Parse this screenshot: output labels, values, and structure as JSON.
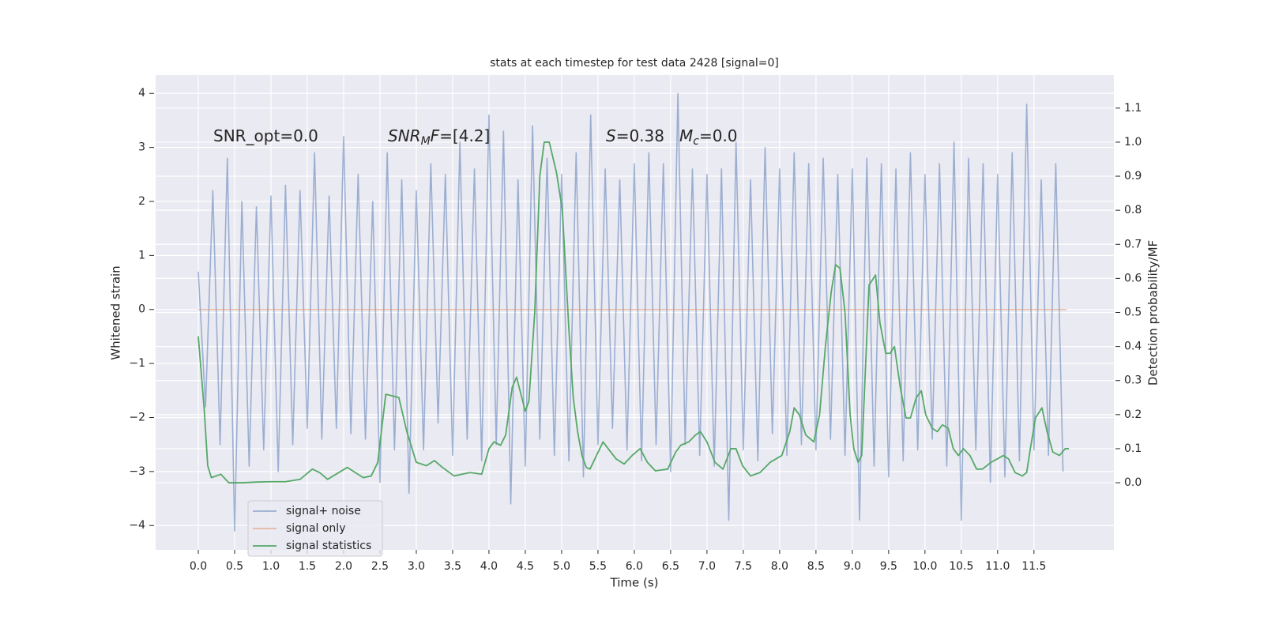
{
  "chart_data": {
    "type": "line",
    "title": "stats at each timestep for test data 2428 [signal=0]",
    "xlabel": "Time (s)",
    "ylabel": "Whitened strain",
    "y2label": "Detection probability/MF",
    "xlim": [
      -0.587,
      12.6
    ],
    "ylim": [
      -4.45,
      4.34
    ],
    "y2lim": [
      -0.197,
      1.197
    ],
    "xticks": [
      {
        "value": 0,
        "label": "0.0"
      },
      0.5,
      {
        "value": 1,
        "label": "1.0"
      },
      1.5,
      {
        "value": 2,
        "label": "2.0"
      },
      2.5,
      {
        "value": 3,
        "label": "3.0"
      },
      3.5,
      {
        "value": 4,
        "label": "4.0"
      },
      4.5,
      {
        "value": 5,
        "label": "5.0"
      },
      5.5,
      {
        "value": 6,
        "label": "6.0"
      },
      6.5,
      {
        "value": 7,
        "label": "7.0"
      },
      7.5,
      {
        "value": 8,
        "label": "8.0"
      },
      8.5,
      {
        "value": 9,
        "label": "9.0"
      },
      9.5,
      {
        "value": 10,
        "label": "10.0"
      },
      10.5,
      {
        "value": 11,
        "label": "11.0"
      },
      11.5
    ],
    "yticks": [
      {
        "value": -4,
        "label": "−4"
      },
      {
        "value": -3,
        "label": "−3"
      },
      {
        "value": -2,
        "label": "−2"
      },
      {
        "value": -1,
        "label": "−1"
      },
      0,
      1,
      2,
      3,
      4
    ],
    "y2ticks": [
      {
        "value": 0,
        "label": "0.0"
      },
      0.1,
      0.2,
      0.3,
      0.4,
      0.5,
      0.6,
      0.7,
      0.8,
      0.9,
      {
        "value": 1,
        "label": "1.0"
      },
      1.1
    ],
    "grid": true,
    "legend": "lower left",
    "annotations": [
      {
        "segments": [
          {
            "text": "SNR_opt=0.0"
          }
        ]
      },
      {
        "segments": [
          {
            "text": "SNR",
            "italic": true
          },
          {
            "text": "M",
            "italic": true,
            "sub": true
          },
          {
            "text": "F",
            "italic": true
          },
          {
            "text": "=[4.2]"
          }
        ]
      },
      {
        "segments": [
          {
            "text": "S",
            "italic": true
          },
          {
            "text": "=0.38"
          }
        ]
      },
      {
        "segments": [
          {
            "text": "M",
            "italic": true
          },
          {
            "text": "c",
            "italic": true,
            "sub": true
          },
          {
            "text": "=0.0"
          }
        ]
      }
    ],
    "series": [
      {
        "name": "signal+ noise",
        "color": "#4c72b0",
        "opacity": 0.5,
        "axis": "y",
        "x": [
          0.0,
          0.1,
          0.2,
          0.3,
          0.4,
          0.5,
          0.6,
          0.7,
          0.8,
          0.9,
          1.0,
          1.1,
          1.2,
          1.3,
          1.4,
          1.5,
          1.6,
          1.7,
          1.8,
          1.9,
          2.0,
          2.1,
          2.2,
          2.3,
          2.4,
          2.5,
          2.6,
          2.7,
          2.8,
          2.9,
          3.0,
          3.1,
          3.2,
          3.3,
          3.4,
          3.5,
          3.6,
          3.7,
          3.8,
          3.9,
          4.0,
          4.1,
          4.2,
          4.3,
          4.4,
          4.5,
          4.6,
          4.7,
          4.8,
          4.9,
          5.0,
          5.1,
          5.2,
          5.3,
          5.4,
          5.5,
          5.6,
          5.7,
          5.8,
          5.9,
          6.0,
          6.1,
          6.2,
          6.3,
          6.4,
          6.5,
          6.6,
          6.7,
          6.8,
          6.9,
          7.0,
          7.1,
          7.2,
          7.3,
          7.4,
          7.5,
          7.6,
          7.7,
          7.8,
          7.9,
          8.0,
          8.1,
          8.2,
          8.3,
          8.4,
          8.5,
          8.6,
          8.7,
          8.8,
          8.9,
          9.0,
          9.1,
          9.2,
          9.3,
          9.4,
          9.5,
          9.6,
          9.7,
          9.8,
          9.9,
          10.0,
          10.1,
          10.2,
          10.3,
          10.4,
          10.5,
          10.6,
          10.7,
          10.8,
          10.9,
          11.0,
          11.1,
          11.2,
          11.3,
          11.4,
          11.5,
          11.6,
          11.7,
          11.8,
          11.9
        ],
        "values": [
          0.7,
          -1.8,
          2.2,
          -2.5,
          2.8,
          -4.1,
          2.0,
          -2.9,
          1.9,
          -2.6,
          2.1,
          -3.0,
          2.3,
          -2.5,
          2.2,
          -2.2,
          2.9,
          -2.4,
          2.1,
          -2.2,
          3.2,
          -2.3,
          2.5,
          -2.4,
          2.0,
          -3.2,
          2.9,
          -2.6,
          2.4,
          -3.4,
          2.2,
          -2.6,
          2.7,
          -2.1,
          2.5,
          -2.7,
          3.1,
          -2.4,
          2.6,
          -2.8,
          3.6,
          -2.5,
          3.3,
          -3.6,
          2.4,
          -2.9,
          3.4,
          -2.4,
          2.8,
          -2.7,
          2.5,
          -2.8,
          2.9,
          -3.1,
          3.6,
          -2.5,
          2.6,
          -2.2,
          2.4,
          -2.6,
          2.7,
          -2.8,
          2.9,
          -2.5,
          2.7,
          -3.0,
          4.0,
          -2.5,
          2.6,
          -2.7,
          2.5,
          -2.9,
          2.6,
          -3.9,
          3.1,
          -2.6,
          2.4,
          -2.8,
          3.0,
          -2.3,
          2.6,
          -2.7,
          2.9,
          -2.5,
          2.7,
          -2.6,
          2.8,
          -2.4,
          2.5,
          -2.7,
          2.6,
          -3.9,
          2.8,
          -2.9,
          2.7,
          -3.1,
          2.6,
          -2.8,
          2.9,
          -2.6,
          2.5,
          -2.4,
          2.7,
          -2.9,
          3.1,
          -3.9,
          2.8,
          -2.6,
          2.7,
          -3.2,
          2.5,
          -3.1,
          2.9,
          -2.8,
          3.8,
          -2.6,
          2.4,
          -2.7,
          2.7,
          -3.0
        ]
      },
      {
        "name": "signal only",
        "color": "#dd8452",
        "opacity": 0.5,
        "axis": "y",
        "x": [
          0.0,
          11.95
        ],
        "values": [
          0,
          0
        ]
      },
      {
        "name": "signal statistics",
        "color": "#55a868",
        "opacity": 1,
        "axis": "y2",
        "x": [
          0.0,
          0.08,
          0.13,
          0.18,
          0.31,
          0.42,
          0.6,
          0.8,
          1.0,
          1.2,
          1.4,
          1.57,
          1.67,
          1.78,
          2.05,
          2.27,
          2.38,
          2.47,
          2.58,
          2.76,
          2.87,
          3.0,
          3.14,
          3.25,
          3.36,
          3.52,
          3.74,
          3.9,
          4.0,
          4.07,
          4.16,
          4.23,
          4.32,
          4.38,
          4.5,
          4.55,
          4.63,
          4.7,
          4.76,
          4.83,
          4.93,
          5.01,
          5.1,
          5.16,
          5.22,
          5.28,
          5.34,
          5.39,
          5.48,
          5.57,
          5.64,
          5.75,
          5.86,
          5.97,
          6.08,
          6.18,
          6.29,
          6.46,
          6.57,
          6.64,
          6.75,
          6.84,
          6.91,
          7.0,
          7.11,
          7.22,
          7.33,
          7.4,
          7.49,
          7.6,
          7.73,
          7.87,
          8.03,
          8.14,
          8.2,
          8.27,
          8.36,
          8.47,
          8.55,
          8.63,
          8.71,
          8.77,
          8.83,
          8.9,
          8.97,
          9.02,
          9.08,
          9.13,
          9.23,
          9.32,
          9.38,
          9.46,
          9.52,
          9.58,
          9.66,
          9.74,
          9.8,
          9.88,
          9.95,
          10.01,
          10.1,
          10.17,
          10.24,
          10.32,
          10.39,
          10.46,
          10.53,
          10.62,
          10.71,
          10.79,
          10.91,
          11.08,
          11.15,
          11.24,
          11.34,
          11.4,
          11.45,
          11.52,
          11.61,
          11.68,
          11.76,
          11.85,
          11.93,
          11.98
        ],
        "values": [
          0.43,
          0.22,
          0.05,
          0.015,
          0.025,
          0.0,
          0.0,
          0.002,
          0.003,
          0.003,
          0.01,
          0.04,
          0.03,
          0.01,
          0.045,
          0.015,
          0.02,
          0.06,
          0.26,
          0.25,
          0.15,
          0.06,
          0.05,
          0.065,
          0.045,
          0.02,
          0.03,
          0.025,
          0.1,
          0.12,
          0.11,
          0.14,
          0.28,
          0.31,
          0.21,
          0.24,
          0.5,
          0.9,
          1.0,
          1.0,
          0.91,
          0.8,
          0.45,
          0.25,
          0.15,
          0.08,
          0.045,
          0.04,
          0.08,
          0.12,
          0.1,
          0.07,
          0.055,
          0.08,
          0.1,
          0.06,
          0.035,
          0.04,
          0.09,
          0.11,
          0.12,
          0.14,
          0.15,
          0.12,
          0.06,
          0.04,
          0.1,
          0.1,
          0.05,
          0.02,
          0.03,
          0.06,
          0.08,
          0.15,
          0.22,
          0.2,
          0.14,
          0.12,
          0.2,
          0.4,
          0.56,
          0.64,
          0.63,
          0.5,
          0.2,
          0.1,
          0.06,
          0.08,
          0.58,
          0.61,
          0.47,
          0.38,
          0.38,
          0.4,
          0.28,
          0.19,
          0.19,
          0.25,
          0.27,
          0.2,
          0.16,
          0.15,
          0.17,
          0.16,
          0.1,
          0.08,
          0.1,
          0.08,
          0.04,
          0.04,
          0.06,
          0.08,
          0.07,
          0.03,
          0.02,
          0.03,
          0.1,
          0.19,
          0.22,
          0.15,
          0.09,
          0.08,
          0.1,
          0.1
        ]
      }
    ]
  }
}
